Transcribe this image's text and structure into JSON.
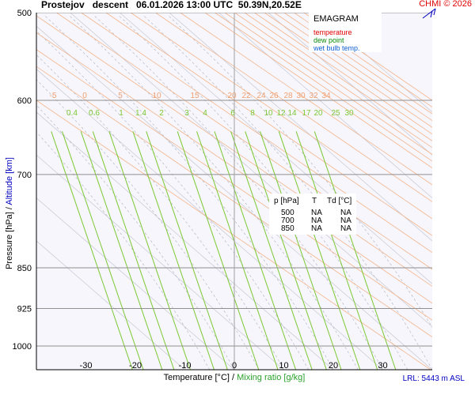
{
  "header": {
    "title": "Prostejov   descent   06.01.2026 13:00 UTC  50.39N,20.52E",
    "credit": "CHMI © 2026"
  },
  "legend": {
    "title": "EMAGRAM",
    "items": [
      {
        "label": "temperature",
        "color": "#e00000"
      },
      {
        "label": "dew point",
        "color": "#0a8a0a"
      },
      {
        "label": "wet bulb temp.",
        "color": "#1060d0"
      }
    ]
  },
  "table": {
    "headers": [
      "p [hPa]",
      "T",
      "Td [°C]"
    ],
    "rows": [
      [
        "500",
        "NA",
        "NA"
      ],
      [
        "700",
        "NA",
        "NA"
      ],
      [
        "850",
        "NA",
        "NA"
      ]
    ]
  },
  "axes": {
    "y_label_main": "Pressure [hPa]  /  ",
    "y_label_alt": "Altitude [km]",
    "x_label_main": "Temperature [°C]  /  ",
    "x_label_alt": "Mixing ratio [g/kg]"
  },
  "lrl": "LRL: 5443 m ASL",
  "chart_data": {
    "type": "line",
    "subtype": "emagram",
    "x_axis": {
      "ticks": [
        -30,
        -20,
        -10,
        0,
        10,
        20,
        30
      ],
      "unit": "°C"
    },
    "y_axis": {
      "scale": "log",
      "ticks": [
        500,
        600,
        700,
        850,
        925,
        1000
      ],
      "unit": "hPa",
      "range": [
        500,
        1050
      ]
    },
    "isotherm_labels": [
      "-5",
      "0",
      "5",
      "10",
      "15",
      "20",
      "22",
      "24",
      "26",
      "28",
      "30",
      "32",
      "34"
    ],
    "mixing_ratio_labels": [
      "0.4",
      "0.6",
      "1",
      "1.4",
      "2",
      "3",
      "4",
      "6",
      "8",
      "10",
      "12",
      "14",
      "17",
      "20",
      "25",
      "30"
    ],
    "series": []
  }
}
